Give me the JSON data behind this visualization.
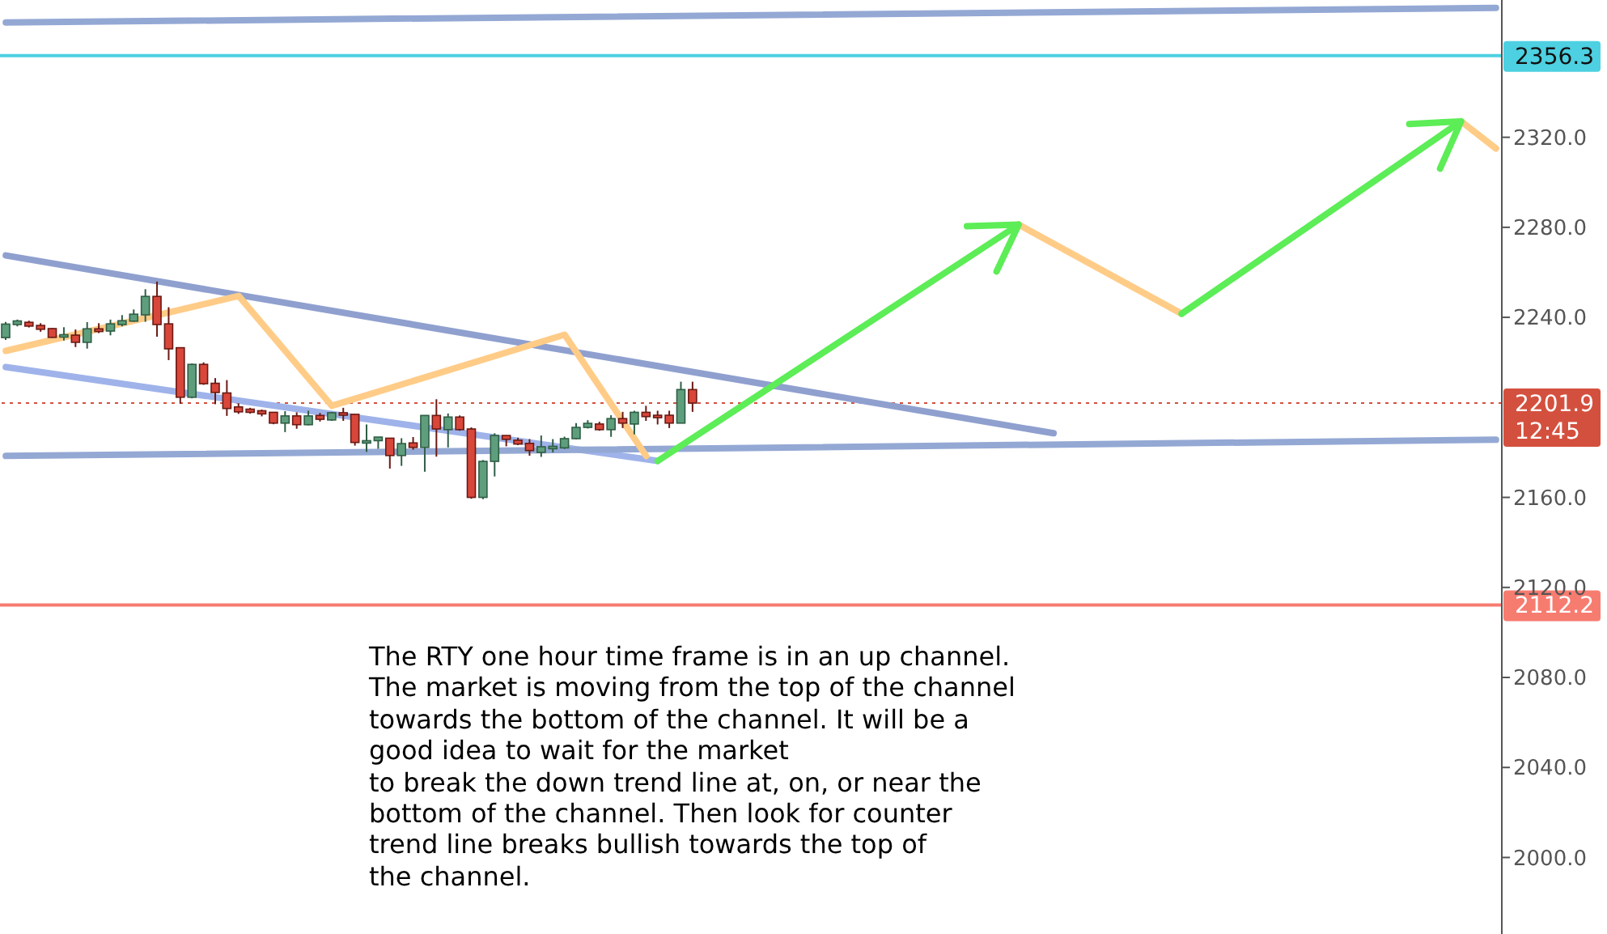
{
  "chart_data": {
    "type": "candlestick",
    "categories": [
      null,
      null,
      null,
      null,
      null,
      null,
      null,
      null,
      null,
      null,
      null,
      null,
      null,
      null,
      null,
      null,
      null,
      null,
      null,
      null,
      null,
      null,
      null,
      null,
      null,
      null,
      null,
      null,
      null,
      null,
      null,
      null,
      null,
      null,
      null,
      null,
      null,
      null,
      null,
      null,
      null,
      null,
      null,
      null,
      null,
      null,
      null,
      null,
      null,
      null,
      null,
      null,
      null,
      null,
      null,
      null,
      null,
      null,
      null,
      null,
      null,
      null,
      null,
      null,
      null,
      null,
      null,
      null,
      null,
      null,
      null,
      null,
      null,
      null,
      null,
      null,
      null,
      null,
      null,
      null,
      null,
      null,
      null,
      null,
      null,
      null,
      null,
      null,
      null,
      null,
      null,
      null,
      null,
      null,
      null,
      null,
      null,
      null,
      null,
      null,
      null,
      null,
      null,
      null,
      null,
      null,
      null,
      null,
      null,
      null,
      null,
      null,
      null,
      null,
      null,
      null,
      null,
      null,
      null,
      null,
      null,
      null,
      null,
      null,
      null,
      null,
      null,
      null,
      null
    ],
    "ohlc": [
      [
        2231,
        2238,
        2230,
        2237
      ],
      [
        2236.8,
        2239,
        2236,
        2238.4
      ],
      [
        2237.8,
        2238.5,
        2235.5,
        2236.1
      ],
      [
        2236.4,
        2237.4,
        2233.6,
        2234.7
      ],
      [
        2235,
        2235.3,
        2230.9,
        2231.1
      ],
      [
        2231.5,
        2235.6,
        2229.7,
        2232.3
      ],
      [
        2232.1,
        2234.6,
        2226.8,
        2228.9
      ],
      [
        2228.9,
        2237.9,
        2226.1,
        2234.9
      ],
      [
        2234.9,
        2237.4,
        2233,
        2233.7
      ],
      [
        2233.9,
        2239,
        2232,
        2237.1
      ],
      [
        2236.8,
        2241,
        2236,
        2238.5
      ],
      [
        2238.3,
        2243.5,
        2238,
        2241.4
      ],
      [
        2241.1,
        2252.5,
        2238,
        2249.3
      ],
      [
        2249.3,
        2255.9,
        2231.4,
        2236.8
      ],
      [
        2237.1,
        2244.5,
        2221,
        2226
      ],
      [
        2226.5,
        2226.5,
        2201.6,
        2204.5
      ],
      [
        2204.5,
        2219.5,
        2204,
        2219.1
      ],
      [
        2219.1,
        2220,
        2210,
        2210.5
      ],
      [
        2210.7,
        2213,
        2201.4,
        2206.6
      ],
      [
        2206.4,
        2212.1,
        2196.2,
        2199.5
      ],
      [
        2200.2,
        2201.8,
        2197.1,
        2198
      ],
      [
        2199.2,
        2199.8,
        2197.2,
        2197.8
      ],
      [
        2198.5,
        2199,
        2196,
        2197.1
      ],
      [
        2197.8,
        2197.8,
        2192.5,
        2193
      ],
      [
        2193,
        2198.3,
        2189,
        2196.2
      ],
      [
        2196.2,
        2197.8,
        2190.5,
        2192.3
      ],
      [
        2192.3,
        2198.5,
        2192,
        2196.2
      ],
      [
        2196.4,
        2197.5,
        2193.7,
        2194.7
      ],
      [
        2194.4,
        2198,
        2194,
        2197.6
      ],
      [
        2197.6,
        2199.8,
        2194,
        2196.6
      ],
      [
        2196.9,
        2196.9,
        2183,
        2184.4
      ],
      [
        2184.4,
        2192.4,
        2180.2,
        2185.2
      ],
      [
        2185.2,
        2186.8,
        2181.6,
        2186.8
      ],
      [
        2186.3,
        2186.3,
        2172.8,
        2178.6
      ],
      [
        2178.6,
        2186.3,
        2174,
        2183.9
      ],
      [
        2184.2,
        2186.8,
        2181.2,
        2182.2
      ],
      [
        2182.2,
        2196.4,
        2171.4,
        2196.4
      ],
      [
        2196.4,
        2203.6,
        2178.1,
        2190.4
      ],
      [
        2190.1,
        2197.3,
        2182.2,
        2195.7
      ],
      [
        2195.7,
        2196.4,
        2189.6,
        2190.1
      ],
      [
        2190.4,
        2191.1,
        2159.4,
        2160
      ],
      [
        2160,
        2176.6,
        2159.2,
        2176
      ],
      [
        2176,
        2188.5,
        2169.3,
        2187.5
      ],
      [
        2187.5,
        2187.5,
        2182.7,
        2185.8
      ],
      [
        2185.4,
        2186.5,
        2183.2,
        2183.7
      ],
      [
        2184,
        2185.9,
        2178.5,
        2180.8
      ],
      [
        2180,
        2187.5,
        2178,
        2182.5
      ],
      [
        2181.8,
        2185.9,
        2180,
        2182.7
      ],
      [
        2182,
        2187,
        2181.5,
        2186.1
      ],
      [
        2186.1,
        2193,
        2185.8,
        2191.1
      ],
      [
        2191.1,
        2194.3,
        2190.6,
        2192.9
      ],
      [
        2192.6,
        2193.6,
        2189.6,
        2190.1
      ],
      [
        2190.1,
        2196.5,
        2186.9,
        2195
      ],
      [
        2195,
        2198,
        2190.8,
        2193
      ],
      [
        2192.6,
        2198.5,
        2188,
        2197.8
      ],
      [
        2197.8,
        2200.7,
        2194,
        2195.9
      ],
      [
        2196.5,
        2198.5,
        2192.4,
        2196.1
      ],
      [
        2196.5,
        2198.5,
        2190.8,
        2193
      ],
      [
        2193,
        2211.4,
        2193,
        2207.9
      ],
      [
        2207.9,
        2211.4,
        2198,
        2201.9
      ],
      null,
      null,
      null,
      null,
      null,
      null,
      null,
      null,
      null,
      null,
      null,
      null,
      null,
      null,
      null,
      null,
      null,
      null,
      null,
      null,
      null,
      null,
      null,
      null,
      null,
      null,
      null,
      null,
      null,
      null,
      null,
      null,
      null,
      null,
      null,
      null,
      null,
      null,
      null,
      null,
      null,
      null,
      null,
      null,
      null,
      null,
      null,
      null,
      null,
      null,
      null,
      null,
      null,
      null,
      null,
      null,
      null,
      null,
      null,
      null,
      null,
      null,
      null,
      null,
      null,
      null,
      null,
      null,
      null
    ],
    "series": [
      {
        "type": "line",
        "color": "#94a8d4",
        "values": [
          2371,
          null,
          null,
          null,
          null,
          null,
          null,
          null,
          null,
          null,
          null,
          null,
          null,
          null,
          null,
          null,
          null,
          null,
          null,
          null,
          null,
          null,
          null,
          null,
          null,
          null,
          null,
          null,
          null,
          null,
          null,
          null,
          null,
          null,
          null,
          null,
          null,
          null,
          null,
          null,
          null,
          null,
          null,
          null,
          null,
          null,
          null,
          null,
          null,
          null,
          null,
          null,
          null,
          null,
          null,
          null,
          null,
          null,
          null,
          null,
          null,
          null,
          null,
          null,
          null,
          null,
          null,
          null,
          null,
          null,
          null,
          null,
          null,
          null,
          null,
          null,
          null,
          null,
          null,
          null,
          null,
          null,
          null,
          null,
          null,
          null,
          null,
          null,
          null,
          null,
          null,
          null,
          null,
          null,
          null,
          null,
          null,
          null,
          null,
          null,
          null,
          null,
          null,
          null,
          null,
          null,
          null,
          null,
          null,
          null,
          null,
          null,
          null,
          null,
          null,
          null,
          null,
          null,
          null,
          null,
          null,
          null,
          null,
          null,
          null,
          null,
          null,
          null,
          2377.5
        ]
      },
      {
        "type": "line",
        "color": "#8fa0cf",
        "values": [
          2267.5,
          null,
          null,
          null,
          null,
          null,
          null,
          null,
          null,
          null,
          null,
          null,
          null,
          null,
          null,
          null,
          null,
          null,
          null,
          null,
          null,
          null,
          null,
          null,
          null,
          null,
          null,
          null,
          null,
          null,
          null,
          null,
          null,
          null,
          null,
          null,
          null,
          null,
          null,
          null,
          null,
          null,
          null,
          null,
          null,
          null,
          null,
          null,
          null,
          null,
          null,
          null,
          null,
          null,
          null,
          null,
          null,
          null,
          null,
          null,
          null,
          null,
          null,
          null,
          null,
          null,
          null,
          null,
          null,
          null,
          null,
          null,
          null,
          null,
          null,
          null,
          null,
          null,
          null,
          null,
          null,
          null,
          null,
          null,
          null,
          null,
          null,
          null,
          null,
          null,
          2188.5,
          null,
          null,
          null,
          null,
          null,
          null,
          null,
          null,
          null,
          null,
          null,
          null,
          null,
          null,
          null,
          null,
          null,
          null,
          null,
          null,
          null,
          null,
          null,
          null,
          null,
          null,
          null,
          null,
          null,
          null,
          null,
          null,
          null,
          null,
          null,
          null,
          null,
          null
        ]
      },
      {
        "type": "line",
        "color": "#9fb3ea",
        "values": [
          2217.9,
          null,
          null,
          null,
          null,
          null,
          null,
          null,
          null,
          null,
          null,
          null,
          null,
          null,
          null,
          null,
          null,
          null,
          null,
          null,
          null,
          null,
          null,
          null,
          null,
          null,
          null,
          null,
          null,
          null,
          null,
          null,
          null,
          null,
          null,
          null,
          null,
          null,
          null,
          null,
          null,
          null,
          null,
          null,
          null,
          null,
          null,
          null,
          null,
          null,
          null,
          null,
          null,
          null,
          null,
          null,
          2176.2,
          null,
          null,
          null,
          null,
          null,
          null,
          null,
          null,
          null,
          null,
          null,
          null,
          null,
          null,
          null,
          null,
          null,
          null,
          null,
          null,
          null,
          null,
          null,
          null,
          null,
          null,
          null,
          null,
          null,
          null,
          null,
          null,
          null,
          null,
          null,
          null,
          null,
          null,
          null,
          null,
          null,
          null,
          null,
          null,
          null,
          null,
          null,
          null,
          null,
          null,
          null,
          null,
          null,
          null,
          null,
          null,
          null,
          null,
          null,
          null,
          null,
          null,
          null,
          null,
          null,
          null,
          null,
          null,
          null,
          null,
          null,
          null
        ]
      },
      {
        "type": "line",
        "color": "#94a8d4",
        "values": [
          2178.4,
          null,
          null,
          null,
          null,
          null,
          null,
          null,
          null,
          null,
          null,
          null,
          null,
          null,
          null,
          null,
          null,
          null,
          null,
          null,
          null,
          null,
          null,
          null,
          null,
          null,
          null,
          null,
          null,
          null,
          null,
          null,
          null,
          null,
          null,
          null,
          null,
          null,
          null,
          null,
          null,
          null,
          null,
          null,
          null,
          null,
          null,
          null,
          null,
          null,
          null,
          null,
          null,
          null,
          null,
          null,
          null,
          null,
          null,
          null,
          null,
          null,
          null,
          null,
          null,
          null,
          null,
          null,
          null,
          null,
          null,
          null,
          null,
          null,
          null,
          null,
          null,
          null,
          null,
          null,
          null,
          null,
          null,
          null,
          null,
          null,
          null,
          null,
          null,
          null,
          null,
          null,
          null,
          null,
          null,
          null,
          null,
          null,
          null,
          null,
          null,
          null,
          null,
          null,
          null,
          null,
          null,
          null,
          null,
          null,
          null,
          null,
          null,
          null,
          null,
          null,
          null,
          null,
          null,
          null,
          null,
          null,
          null,
          null,
          null,
          null,
          null,
          null,
          2185.6
        ]
      },
      {
        "type": "line",
        "color": "#ffcc88",
        "values": [
          2225.1,
          null,
          null,
          null,
          null,
          null,
          null,
          null,
          null,
          null,
          null,
          null,
          null,
          null,
          null,
          null,
          null,
          null,
          null,
          null,
          2249.5,
          null,
          null,
          null,
          null,
          null,
          null,
          null,
          2200.7,
          null,
          null,
          null,
          null,
          null,
          null,
          null,
          null,
          null,
          null,
          null,
          null,
          null,
          null,
          null,
          null,
          null,
          null,
          null,
          2232.3,
          null,
          null,
          null,
          null,
          null,
          null,
          2178.4,
          null,
          null,
          null,
          null,
          null,
          null,
          null,
          null,
          null,
          null,
          null,
          null,
          null,
          null,
          null,
          null,
          null,
          null,
          null,
          null,
          null,
          null,
          null,
          null,
          null,
          null,
          null,
          null,
          null,
          null,
          null,
          null,
          null,
          null,
          null,
          null,
          null,
          null,
          null,
          null,
          null,
          null,
          null,
          null,
          null,
          null,
          null,
          null,
          null,
          null,
          null,
          null,
          null,
          null,
          null,
          null,
          null,
          null,
          null,
          null,
          null,
          null,
          null,
          null,
          null,
          null,
          null,
          null,
          null,
          null,
          null,
          null,
          null
        ]
      },
      {
        "type": "line",
        "color": "#5ced57",
        "values": [
          null,
          null,
          null,
          null,
          null,
          null,
          null,
          null,
          null,
          null,
          null,
          null,
          null,
          null,
          null,
          null,
          null,
          null,
          null,
          null,
          null,
          null,
          null,
          null,
          null,
          null,
          null,
          null,
          null,
          null,
          null,
          null,
          null,
          null,
          null,
          null,
          null,
          null,
          null,
          null,
          null,
          null,
          null,
          null,
          null,
          null,
          null,
          null,
          null,
          null,
          null,
          null,
          null,
          null,
          null,
          null,
          2176.2,
          null,
          null,
          null,
          null,
          null,
          null,
          null,
          null,
          null,
          null,
          null,
          null,
          null,
          null,
          null,
          null,
          null,
          null,
          null,
          null,
          null,
          null,
          null,
          null,
          null,
          null,
          null,
          null,
          null,
          null,
          2281.2,
          null,
          null,
          null,
          null,
          null,
          null,
          null,
          null,
          null,
          null,
          null,
          null,
          null,
          null,
          null,
          null,
          null,
          null,
          null,
          null,
          null,
          null,
          null,
          null,
          null,
          null,
          null,
          null,
          null,
          null,
          null,
          null,
          null,
          null,
          null,
          null,
          null,
          null,
          null,
          null,
          null
        ]
      },
      {
        "type": "line",
        "color": "#ffcc88",
        "values": [
          null,
          null,
          null,
          null,
          null,
          null,
          null,
          null,
          null,
          null,
          null,
          null,
          null,
          null,
          null,
          null,
          null,
          null,
          null,
          null,
          null,
          null,
          null,
          null,
          null,
          null,
          null,
          null,
          null,
          null,
          null,
          null,
          null,
          null,
          null,
          null,
          null,
          null,
          null,
          null,
          null,
          null,
          null,
          null,
          null,
          null,
          null,
          null,
          null,
          null,
          null,
          null,
          null,
          null,
          null,
          null,
          null,
          null,
          null,
          null,
          null,
          null,
          null,
          null,
          null,
          null,
          null,
          null,
          null,
          null,
          null,
          null,
          null,
          null,
          null,
          null,
          null,
          null,
          null,
          null,
          null,
          null,
          null,
          null,
          null,
          null,
          null,
          2281.2,
          null,
          null,
          null,
          null,
          null,
          null,
          null,
          null,
          null,
          null,
          null,
          null,
          null,
          2241.6,
          null,
          null,
          null,
          null,
          null,
          null,
          null,
          null,
          null,
          null,
          null,
          null,
          null,
          null,
          null,
          null,
          null,
          null,
          null,
          null,
          null,
          null,
          null,
          null,
          null,
          null,
          null
        ]
      },
      {
        "type": "line",
        "color": "#5ced57",
        "values": [
          null,
          null,
          null,
          null,
          null,
          null,
          null,
          null,
          null,
          null,
          null,
          null,
          null,
          null,
          null,
          null,
          null,
          null,
          null,
          null,
          null,
          null,
          null,
          null,
          null,
          null,
          null,
          null,
          null,
          null,
          null,
          null,
          null,
          null,
          null,
          null,
          null,
          null,
          null,
          null,
          null,
          null,
          null,
          null,
          null,
          null,
          null,
          null,
          null,
          null,
          null,
          null,
          null,
          null,
          null,
          null,
          null,
          null,
          null,
          null,
          null,
          null,
          null,
          null,
          null,
          null,
          null,
          null,
          null,
          null,
          null,
          null,
          null,
          null,
          null,
          null,
          null,
          null,
          null,
          null,
          null,
          null,
          null,
          null,
          null,
          null,
          null,
          null,
          null,
          null,
          null,
          null,
          null,
          null,
          null,
          null,
          null,
          null,
          null,
          null,
          null,
          2241.6,
          null,
          null,
          null,
          null,
          null,
          null,
          null,
          null,
          null,
          null,
          null,
          null,
          null,
          null,
          null,
          null,
          null,
          null,
          null,
          null,
          null,
          null,
          null,
          2327.1,
          null,
          null,
          null
        ]
      },
      {
        "type": "line",
        "color": "#ffcc88",
        "values": [
          null,
          null,
          null,
          null,
          null,
          null,
          null,
          null,
          null,
          null,
          null,
          null,
          null,
          null,
          null,
          null,
          null,
          null,
          null,
          null,
          null,
          null,
          null,
          null,
          null,
          null,
          null,
          null,
          null,
          null,
          null,
          null,
          null,
          null,
          null,
          null,
          null,
          null,
          null,
          null,
          null,
          null,
          null,
          null,
          null,
          null,
          null,
          null,
          null,
          null,
          null,
          null,
          null,
          null,
          null,
          null,
          null,
          null,
          null,
          null,
          null,
          null,
          null,
          null,
          null,
          null,
          null,
          null,
          null,
          null,
          null,
          null,
          null,
          null,
          null,
          null,
          null,
          null,
          null,
          null,
          null,
          null,
          null,
          null,
          null,
          null,
          null,
          null,
          null,
          null,
          null,
          null,
          null,
          null,
          null,
          null,
          null,
          null,
          null,
          null,
          null,
          null,
          null,
          null,
          null,
          null,
          null,
          null,
          null,
          null,
          null,
          null,
          null,
          null,
          null,
          null,
          null,
          null,
          null,
          null,
          null,
          null,
          null,
          null,
          null,
          2327.1,
          null,
          null,
          2315
        ]
      }
    ],
    "ylim": [
      1966,
      2381
    ],
    "yticks": [
      {
        "value": 2000,
        "label": "2000.0"
      },
      {
        "value": 2040,
        "label": "2040.0"
      },
      {
        "value": 2080,
        "label": "2080.0"
      },
      {
        "value": 2120,
        "label": "2120.0"
      },
      {
        "value": 2160,
        "label": "2160.0"
      },
      {
        "value": 2240,
        "label": "2240.0"
      },
      {
        "value": 2280,
        "label": "2280.0"
      },
      {
        "value": 2320,
        "label": "2320.0"
      }
    ],
    "tick_labels": "y",
    "ref_lines": [
      {
        "axis": "y",
        "value": 2356.3,
        "label": "2356.3",
        "color": "#4dd0e1"
      },
      {
        "axis": "y",
        "value": 2112.2,
        "label": "2112.2",
        "color": "#f77c70"
      },
      {
        "axis": "y",
        "value": 2201.9,
        "label": "2201.9\n12:45",
        "color": "#d4503e",
        "line_style": "dotted"
      }
    ],
    "annotations": [
      "The RTY one hour time frame is in an up channel.\nThe market is moving from the top of the channel\ntowards the bottom of the channel. It will be a\ngood idea to wait for the market\nto break the down trend line at, on, or near the\nbottom of the channel. Then look for counter\ntrend line breaks bullish towards the top of\nthe channel."
    ]
  }
}
